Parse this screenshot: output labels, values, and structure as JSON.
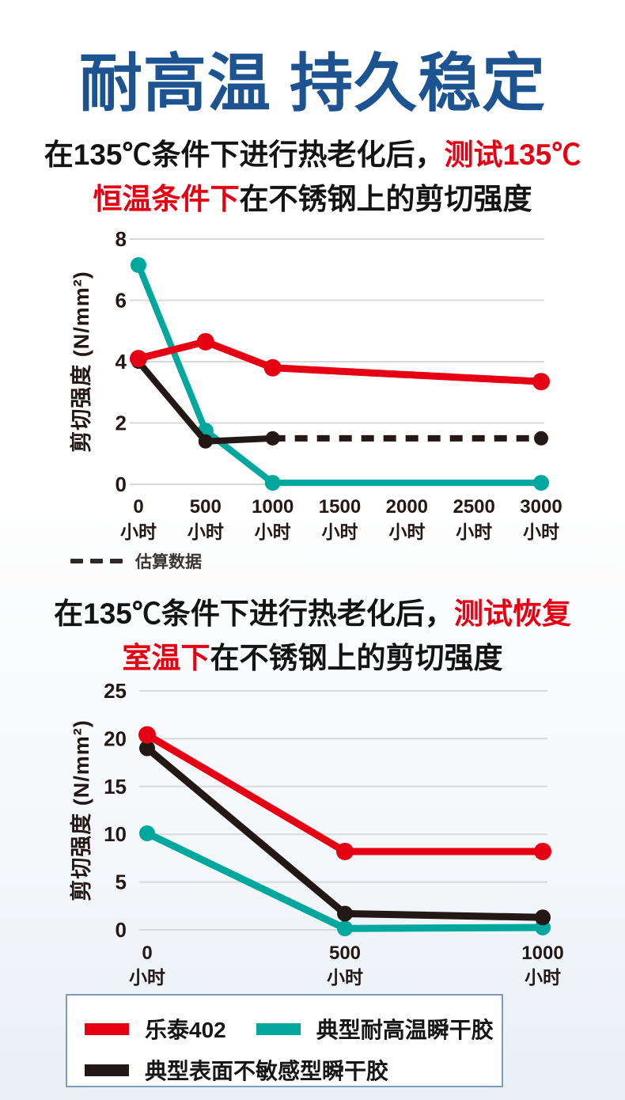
{
  "page_title": "耐高温 持久稳定",
  "headings": {
    "chart1": {
      "line1": [
        {
          "text": "在135℃条件下进行热老化后，",
          "red": false
        },
        {
          "text": "测试135℃",
          "red": true
        }
      ],
      "line2": [
        {
          "text": "恒温条件下",
          "red": true
        },
        {
          "text": "在不锈钢上的剪切强度",
          "red": false
        }
      ]
    },
    "chart2": {
      "line1": [
        {
          "text": "在135℃条件下进行热老化后，",
          "red": false
        },
        {
          "text": "测试恢复",
          "red": true
        }
      ],
      "line2": [
        {
          "text": "室温下",
          "red": true
        },
        {
          "text": "在不锈钢上的剪切强度",
          "red": false
        }
      ]
    }
  },
  "estimate_legend_label": "估算数据",
  "legend": {
    "items": [
      {
        "label": "乐泰402",
        "color": "#e60014"
      },
      {
        "label": "典型耐高温瞬干胶",
        "color": "#00a79c"
      },
      {
        "label": "典型表面不敏感型瞬干胶",
        "color": "#231815"
      }
    ]
  },
  "colors": {
    "title_blue": "#1d5391",
    "highlight_red": "#e60012",
    "loctite_red": "#e60014",
    "teal": "#00a79c",
    "black_line": "#231815",
    "grid": "#d9d9d9",
    "legend_border": "#7b9cbd",
    "page_bottom_tint": "#e9eff5"
  },
  "chart_data": [
    {
      "type": "line",
      "title": "在135℃条件下进行热老化后，测试135℃恒温条件下在不锈钢上的剪切强度",
      "ylabel": "剪切强度 (N/mm²)",
      "xlabel": "",
      "x_unit": "小时",
      "x_step": 500,
      "categories": [
        "0",
        "500",
        "1000",
        "1500",
        "2000",
        "2500",
        "3000"
      ],
      "ylim": [
        0,
        8
      ],
      "yticks": [
        8,
        6,
        4,
        2,
        0
      ],
      "grid": true,
      "legend_position": "bottom",
      "series": [
        {
          "name": "典型耐高温瞬干胶",
          "color": "#00a79c",
          "dashed": false,
          "points": [
            [
              0,
              7.15
            ],
            [
              500,
              1.75
            ],
            [
              1000,
              0.05
            ],
            [
              3000,
              0.05
            ]
          ]
        },
        {
          "name": "典型表面不敏感型瞬干胶",
          "color": "#231815",
          "dashed": false,
          "points": [
            [
              0,
              4.0
            ],
            [
              500,
              1.4
            ],
            [
              1000,
              1.5
            ]
          ]
        },
        {
          "name": "典型表面不敏感型瞬干胶（估算数据）",
          "color": "#231815",
          "dashed": true,
          "markers": "last",
          "points": [
            [
              1000,
              1.5
            ],
            [
              3000,
              1.5
            ]
          ]
        },
        {
          "name": "乐泰402",
          "color": "#e60014",
          "dashed": false,
          "points": [
            [
              0,
              4.1
            ],
            [
              500,
              4.65
            ],
            [
              1000,
              3.8
            ],
            [
              3000,
              3.35
            ]
          ]
        }
      ]
    },
    {
      "type": "line",
      "title": "在135℃条件下进行热老化后，测试恢复室温下在不锈钢上的剪切强度",
      "ylabel": "剪切强度 (N/mm²)",
      "xlabel": "",
      "x_unit": "小时",
      "x_step": 500,
      "categories": [
        "0",
        "500",
        "1000"
      ],
      "ylim": [
        0,
        25
      ],
      "yticks": [
        25,
        20,
        15,
        10,
        5,
        0
      ],
      "grid": true,
      "legend_position": "bottom",
      "series": [
        {
          "name": "典型耐高温瞬干胶",
          "color": "#00a79c",
          "dashed": false,
          "points": [
            [
              0,
              10.1
            ],
            [
              500,
              0.15
            ],
            [
              1000,
              0.25
            ]
          ]
        },
        {
          "name": "典型表面不敏感型瞬干胶",
          "color": "#231815",
          "dashed": false,
          "points": [
            [
              0,
              19.0
            ],
            [
              500,
              1.7
            ],
            [
              1000,
              1.3
            ]
          ]
        },
        {
          "name": "乐泰402",
          "color": "#e60014",
          "dashed": false,
          "points": [
            [
              0,
              20.4
            ],
            [
              500,
              8.2
            ],
            [
              1000,
              8.2
            ]
          ]
        }
      ]
    }
  ]
}
